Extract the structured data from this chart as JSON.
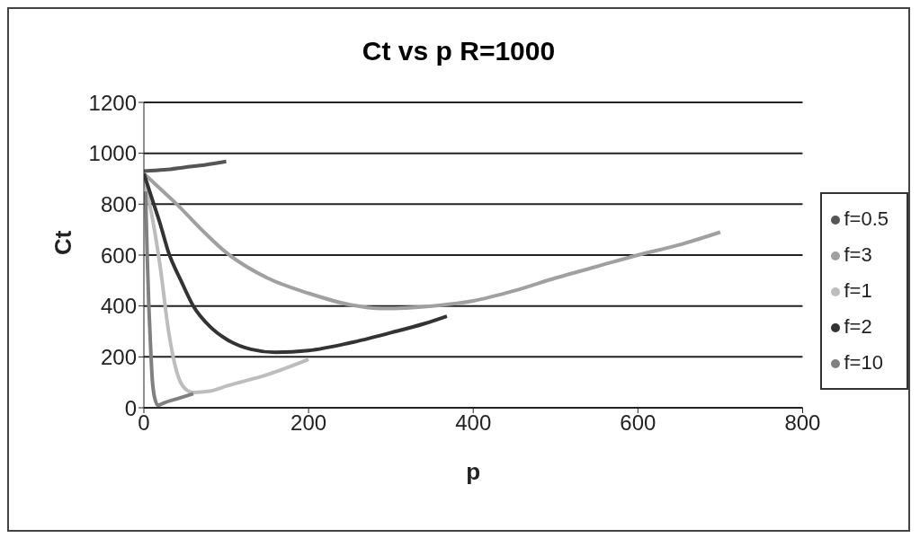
{
  "chart_data": {
    "type": "line",
    "title": "Ct vs p R=1000",
    "xlabel": "p",
    "ylabel": "Ct",
    "xlim": [
      0,
      800
    ],
    "xticks": [
      0,
      200,
      400,
      600,
      800
    ],
    "ylim": [
      0,
      1200
    ],
    "yticks": [
      0,
      200,
      400,
      600,
      800,
      1000,
      1200
    ],
    "grid": "y",
    "legend": "right",
    "marker": "none",
    "line_style": "solid",
    "series": [
      {
        "name": "f=0.5",
        "color": "#555555",
        "x": [
          0,
          25,
          50,
          75,
          100
        ],
        "values": [
          930,
          935,
          945,
          955,
          968
        ]
      },
      {
        "name": "f=3",
        "color": "#a0a0a0",
        "x": [
          0,
          20,
          40,
          70,
          100,
          150,
          200,
          250,
          290,
          350,
          400,
          450,
          500,
          550,
          600,
          650,
          700
        ],
        "values": [
          920,
          860,
          800,
          700,
          610,
          510,
          450,
          405,
          390,
          400,
          420,
          460,
          510,
          555,
          600,
          640,
          690
        ]
      },
      {
        "name": "f=1",
        "color": "#bdbdbd",
        "x": [
          0,
          10,
          20,
          30,
          40,
          50,
          60,
          80,
          100,
          150,
          200
        ],
        "values": [
          900,
          750,
          550,
          300,
          140,
          75,
          60,
          65,
          85,
          130,
          190
        ]
      },
      {
        "name": "f=2",
        "color": "#333333",
        "x": [
          0,
          10,
          20,
          30,
          45,
          60,
          80,
          100,
          130,
          160,
          200,
          250,
          300,
          340,
          368
        ],
        "values": [
          920,
          820,
          720,
          610,
          500,
          400,
          320,
          270,
          230,
          218,
          225,
          255,
          295,
          330,
          360
        ]
      },
      {
        "name": "f=10",
        "color": "#808080",
        "x": [
          2,
          4,
          6,
          8,
          10,
          13,
          17,
          25,
          40,
          60
        ],
        "values": [
          850,
          600,
          400,
          250,
          120,
          40,
          10,
          20,
          35,
          55
        ]
      }
    ]
  }
}
